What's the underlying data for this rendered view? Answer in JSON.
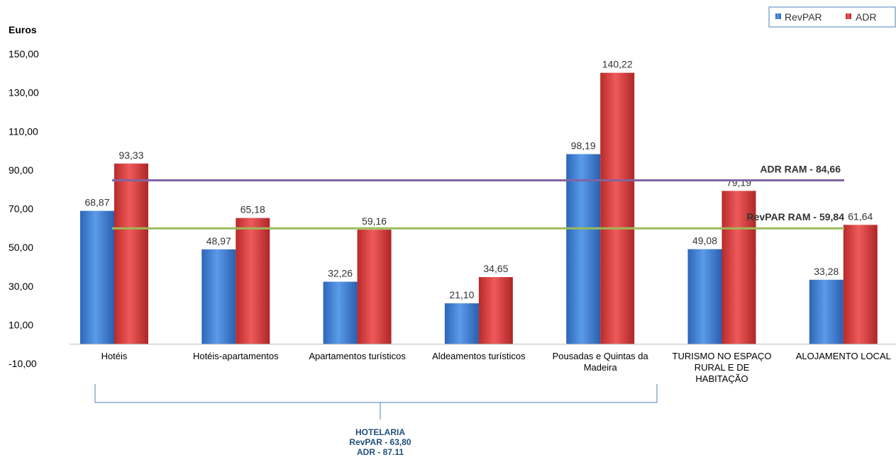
{
  "chart_data": {
    "type": "bar",
    "ylabel": "Euros",
    "ylim": [
      -10,
      150
    ],
    "yticks": [
      "150,00",
      "130,00",
      "110,00",
      "90,00",
      "70,00",
      "50,00",
      "30,00",
      "10,00",
      "-10,00"
    ],
    "ytick_values": [
      150,
      130,
      110,
      90,
      70,
      50,
      30,
      10,
      -10
    ],
    "categories": [
      [
        "Hotéis"
      ],
      [
        "Hotéis-apartamentos"
      ],
      [
        "Apartamentos turísticos"
      ],
      [
        "Aldeamentos turísticos"
      ],
      [
        "Pousadas e Quintas da",
        "Madeira"
      ],
      [
        "TURISMO NO ESPAÇO",
        "RURAL E DE",
        "HABITAÇÃO"
      ],
      [
        "ALOJAMENTO LOCAL"
      ]
    ],
    "series": [
      {
        "name": "RevPAR",
        "color": "#3a7bd5",
        "values": [
          68.87,
          48.97,
          32.26,
          21.1,
          98.19,
          49.08,
          33.28
        ],
        "labels": [
          "68,87",
          "48,97",
          "32,26",
          "21,10",
          "98,19",
          "49,08",
          "33,28"
        ]
      },
      {
        "name": "ADR",
        "color": "#d73a3a",
        "values": [
          93.33,
          65.18,
          59.16,
          34.65,
          140.22,
          79.19,
          61.64
        ],
        "labels": [
          "93,33",
          "65,18",
          "59,16",
          "34,65",
          "140,22",
          "79,19",
          "61,64"
        ]
      }
    ],
    "reference_lines": [
      {
        "label": "ADR RAM - 84,66",
        "value": 84.66,
        "color": "#8064a2"
      },
      {
        "label": "RevPAR RAM - 59,84",
        "value": 59.84,
        "color": "#9bbb59"
      }
    ],
    "group_annotation": {
      "lines": [
        "HOTELARIA",
        "RevPAR - 63,80",
        "ADR - 87.11"
      ],
      "from_category": 0,
      "to_category": 4
    },
    "legend_position": "top-right",
    "grid": false
  }
}
